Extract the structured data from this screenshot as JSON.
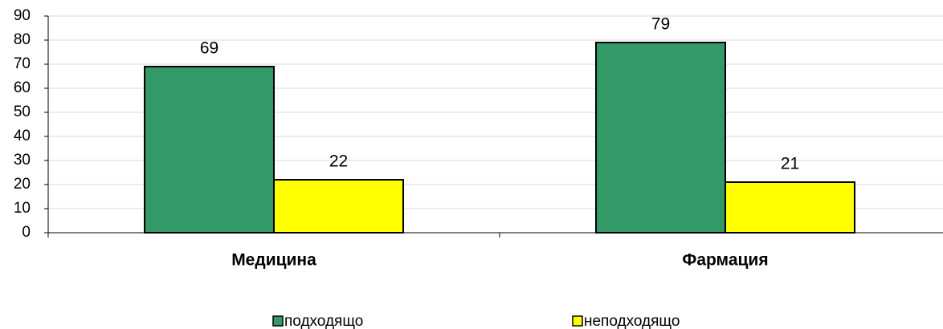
{
  "chart_data": {
    "type": "bar",
    "categories": [
      "Медицина",
      "Фармация"
    ],
    "series": [
      {
        "name": "подходящо",
        "color": "#339966",
        "values": [
          69,
          79
        ]
      },
      {
        "name": "неподходящо",
        "color": "#ffff00",
        "values": [
          22,
          21
        ]
      }
    ],
    "ylim": [
      0,
      90
    ],
    "yticks": [
      0,
      10,
      20,
      30,
      40,
      50,
      60,
      70,
      80,
      90
    ],
    "grid": true,
    "legend": "bottom"
  }
}
